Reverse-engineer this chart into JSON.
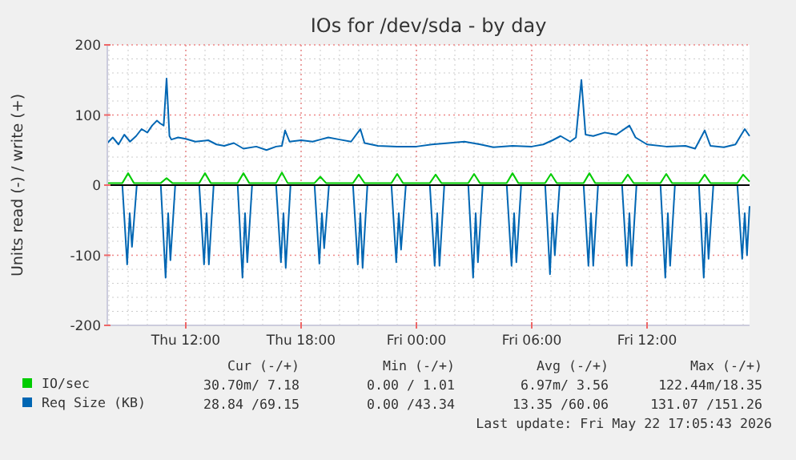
{
  "chart_data": {
    "type": "line",
    "title": "IOs for /dev/sda - by day",
    "ylabel": "Units read (-) / write (+)",
    "xlim": [
      "2026-05-21T07:55",
      "2026-05-22T17:20"
    ],
    "xticks": [
      {
        "value": "2026-05-21T12:00",
        "label": "Thu 12:00"
      },
      {
        "value": "2026-05-21T18:00",
        "label": "Thu 18:00"
      },
      {
        "value": "2026-05-22T00:00",
        "label": "Fri 00:00"
      },
      {
        "value": "2026-05-22T06:00",
        "label": "Fri 06:00"
      },
      {
        "value": "2026-05-22T12:00",
        "label": "Fri 12:00"
      }
    ],
    "ylim": [
      -200,
      200
    ],
    "yticks": [
      -200,
      -100,
      0,
      100,
      200
    ],
    "grid": true,
    "legend": "bottom",
    "series": [
      {
        "name": "IO/sec",
        "color": "#00cc00",
        "x": [
          "2026-05-21T07:55",
          "2026-05-21T08:42",
          "2026-05-21T09:00",
          "2026-05-21T09:18",
          "2026-05-21T10:42",
          "2026-05-21T11:00",
          "2026-05-21T11:18",
          "2026-05-21T12:42",
          "2026-05-21T13:00",
          "2026-05-21T13:18",
          "2026-05-21T14:42",
          "2026-05-21T15:00",
          "2026-05-21T15:18",
          "2026-05-21T16:42",
          "2026-05-21T17:00",
          "2026-05-21T17:18",
          "2026-05-21T18:42",
          "2026-05-21T19:00",
          "2026-05-21T19:18",
          "2026-05-21T20:42",
          "2026-05-21T21:00",
          "2026-05-21T21:18",
          "2026-05-21T22:42",
          "2026-05-21T23:00",
          "2026-05-21T23:18",
          "2026-05-22T00:42",
          "2026-05-22T01:00",
          "2026-05-22T01:18",
          "2026-05-22T02:42",
          "2026-05-22T03:00",
          "2026-05-22T03:18",
          "2026-05-22T04:42",
          "2026-05-22T05:00",
          "2026-05-22T05:18",
          "2026-05-22T06:42",
          "2026-05-22T07:00",
          "2026-05-22T07:18",
          "2026-05-22T08:42",
          "2026-05-22T09:00",
          "2026-05-22T09:18",
          "2026-05-22T10:42",
          "2026-05-22T11:00",
          "2026-05-22T11:18",
          "2026-05-22T12:42",
          "2026-05-22T13:00",
          "2026-05-22T13:18",
          "2026-05-22T14:42",
          "2026-05-22T15:00",
          "2026-05-22T15:18",
          "2026-05-22T16:42",
          "2026-05-22T17:00",
          "2026-05-22T17:20"
        ],
        "values": [
          3,
          3,
          17,
          3,
          3,
          10,
          3,
          3,
          17,
          3,
          3,
          17,
          3,
          3,
          18,
          3,
          3,
          12,
          3,
          3,
          15,
          3,
          3,
          16,
          3,
          3,
          15,
          3,
          3,
          16,
          3,
          3,
          17,
          3,
          3,
          16,
          3,
          3,
          17,
          3,
          3,
          15,
          3,
          3,
          16,
          3,
          3,
          15,
          3,
          3,
          15,
          5
        ]
      },
      {
        "name": "Req Size (KB)",
        "color": "#0066b3",
        "x": [
          "2026-05-21T07:55",
          "2026-05-21T08:12",
          "2026-05-21T08:30",
          "2026-05-21T08:48",
          "2026-05-21T09:06",
          "2026-05-21T09:25",
          "2026-05-21T09:42",
          "2026-05-21T10:00",
          "2026-05-21T10:15",
          "2026-05-21T10:30",
          "2026-05-21T10:40",
          "2026-05-21T10:51",
          "2026-05-21T11:00",
          "2026-05-21T11:09",
          "2026-05-21T11:15",
          "2026-05-21T11:36",
          "2026-05-21T12:00",
          "2026-05-21T12:30",
          "2026-05-21T13:10",
          "2026-05-21T13:36",
          "2026-05-21T14:00",
          "2026-05-21T14:30",
          "2026-05-21T15:00",
          "2026-05-21T15:40",
          "2026-05-21T16:12",
          "2026-05-21T16:42",
          "2026-05-21T17:00",
          "2026-05-21T17:10",
          "2026-05-21T17:24",
          "2026-05-21T18:00",
          "2026-05-21T18:36",
          "2026-05-21T19:00",
          "2026-05-21T19:25",
          "2026-05-21T20:00",
          "2026-05-21T20:36",
          "2026-05-21T21:05",
          "2026-05-21T21:18",
          "2026-05-21T22:00",
          "2026-05-21T23:00",
          "2026-05-22T00:00",
          "2026-05-22T00:48",
          "2026-05-22T01:40",
          "2026-05-22T02:30",
          "2026-05-22T03:20",
          "2026-05-22T04:00",
          "2026-05-22T05:00",
          "2026-05-22T06:00",
          "2026-05-22T06:36",
          "2026-05-22T07:05",
          "2026-05-22T07:30",
          "2026-05-22T08:00",
          "2026-05-22T08:18",
          "2026-05-22T08:35",
          "2026-05-22T08:48",
          "2026-05-22T09:12",
          "2026-05-22T09:48",
          "2026-05-22T10:24",
          "2026-05-22T11:05",
          "2026-05-22T11:24",
          "2026-05-22T12:00",
          "2026-05-22T13:00",
          "2026-05-22T14:00",
          "2026-05-22T14:30",
          "2026-05-22T15:00",
          "2026-05-22T15:18",
          "2026-05-22T16:00",
          "2026-05-22T16:36",
          "2026-05-22T17:05",
          "2026-05-22T17:20"
        ],
        "values": [
          60,
          68,
          58,
          72,
          62,
          70,
          80,
          75,
          85,
          92,
          88,
          85,
          152,
          70,
          65,
          68,
          66,
          62,
          64,
          58,
          56,
          60,
          52,
          55,
          50,
          55,
          56,
          78,
          62,
          64,
          62,
          65,
          68,
          65,
          62,
          80,
          60,
          56,
          55,
          55,
          58,
          60,
          62,
          58,
          54,
          56,
          55,
          58,
          64,
          70,
          62,
          68,
          150,
          72,
          70,
          75,
          72,
          85,
          68,
          58,
          55,
          56,
          52,
          78,
          56,
          54,
          58,
          80,
          70
        ]
      },
      {
        "color": "#0066b3",
        "x": [
          "2026-05-21T07:55",
          "2026-05-21T08:42",
          "2026-05-21T08:57",
          "2026-05-21T09:05",
          "2026-05-21T09:12",
          "2026-05-21T09:27",
          "2026-05-21T10:42",
          "2026-05-21T10:57",
          "2026-05-21T11:05",
          "2026-05-21T11:12",
          "2026-05-21T11:27",
          "2026-05-21T12:42",
          "2026-05-21T12:57",
          "2026-05-21T13:05",
          "2026-05-21T13:12",
          "2026-05-21T13:27",
          "2026-05-21T14:42",
          "2026-05-21T14:57",
          "2026-05-21T15:05",
          "2026-05-21T15:12",
          "2026-05-21T15:27",
          "2026-05-21T16:42",
          "2026-05-21T16:57",
          "2026-05-21T17:05",
          "2026-05-21T17:12",
          "2026-05-21T17:27",
          "2026-05-21T18:42",
          "2026-05-21T18:57",
          "2026-05-21T19:05",
          "2026-05-21T19:12",
          "2026-05-21T19:27",
          "2026-05-21T20:42",
          "2026-05-21T20:57",
          "2026-05-21T21:05",
          "2026-05-21T21:12",
          "2026-05-21T21:27",
          "2026-05-21T22:42",
          "2026-05-21T22:57",
          "2026-05-21T23:05",
          "2026-05-21T23:12",
          "2026-05-21T23:27",
          "2026-05-22T00:42",
          "2026-05-22T00:57",
          "2026-05-22T01:05",
          "2026-05-22T01:12",
          "2026-05-22T01:27",
          "2026-05-22T02:42",
          "2026-05-22T02:57",
          "2026-05-22T03:05",
          "2026-05-22T03:12",
          "2026-05-22T03:27",
          "2026-05-22T04:42",
          "2026-05-22T04:57",
          "2026-05-22T05:05",
          "2026-05-22T05:12",
          "2026-05-22T05:27",
          "2026-05-22T06:42",
          "2026-05-22T06:57",
          "2026-05-22T07:05",
          "2026-05-22T07:12",
          "2026-05-22T07:27",
          "2026-05-22T08:42",
          "2026-05-22T08:57",
          "2026-05-22T09:05",
          "2026-05-22T09:12",
          "2026-05-22T09:27",
          "2026-05-22T10:42",
          "2026-05-22T10:57",
          "2026-05-22T11:05",
          "2026-05-22T11:12",
          "2026-05-22T11:27",
          "2026-05-22T12:42",
          "2026-05-22T12:57",
          "2026-05-22T13:05",
          "2026-05-22T13:12",
          "2026-05-22T13:27",
          "2026-05-22T14:42",
          "2026-05-22T14:57",
          "2026-05-22T15:05",
          "2026-05-22T15:12",
          "2026-05-22T15:27",
          "2026-05-22T16:42",
          "2026-05-22T16:57",
          "2026-05-22T17:05",
          "2026-05-22T17:12",
          "2026-05-22T17:20"
        ],
        "values": [
          0,
          0,
          -113,
          -40,
          -88,
          0,
          0,
          -132,
          -40,
          -107,
          0,
          0,
          -113,
          -40,
          -113,
          0,
          0,
          -132,
          -40,
          -110,
          0,
          0,
          -110,
          -40,
          -118,
          0,
          0,
          -112,
          -40,
          -90,
          0,
          0,
          -113,
          -40,
          -118,
          0,
          0,
          -110,
          -40,
          -92,
          0,
          0,
          -115,
          -40,
          -115,
          0,
          0,
          -132,
          -40,
          -110,
          0,
          0,
          -115,
          -40,
          -110,
          0,
          0,
          -127,
          -40,
          -100,
          0,
          0,
          -115,
          -40,
          -115,
          0,
          0,
          -115,
          -40,
          -115,
          0,
          0,
          -132,
          -40,
          -115,
          0,
          0,
          -132,
          -40,
          -105,
          0,
          0,
          -105,
          -40,
          -100,
          -30
        ]
      }
    ],
    "annotations": [
      "Cur (-/+)",
      "Min (-/+)",
      "Avg (-/+)",
      "Max (-/+)",
      "30.70m/ 7.18",
      "0.00 / 1.01",
      "6.97m/ 3.56",
      "122.44m/18.35",
      "28.84 /69.15",
      "0.00 /43.34",
      "13.35 /60.06",
      "131.07 /151.26",
      "Last update: Fri May 22 17:05:43 2026"
    ]
  }
}
